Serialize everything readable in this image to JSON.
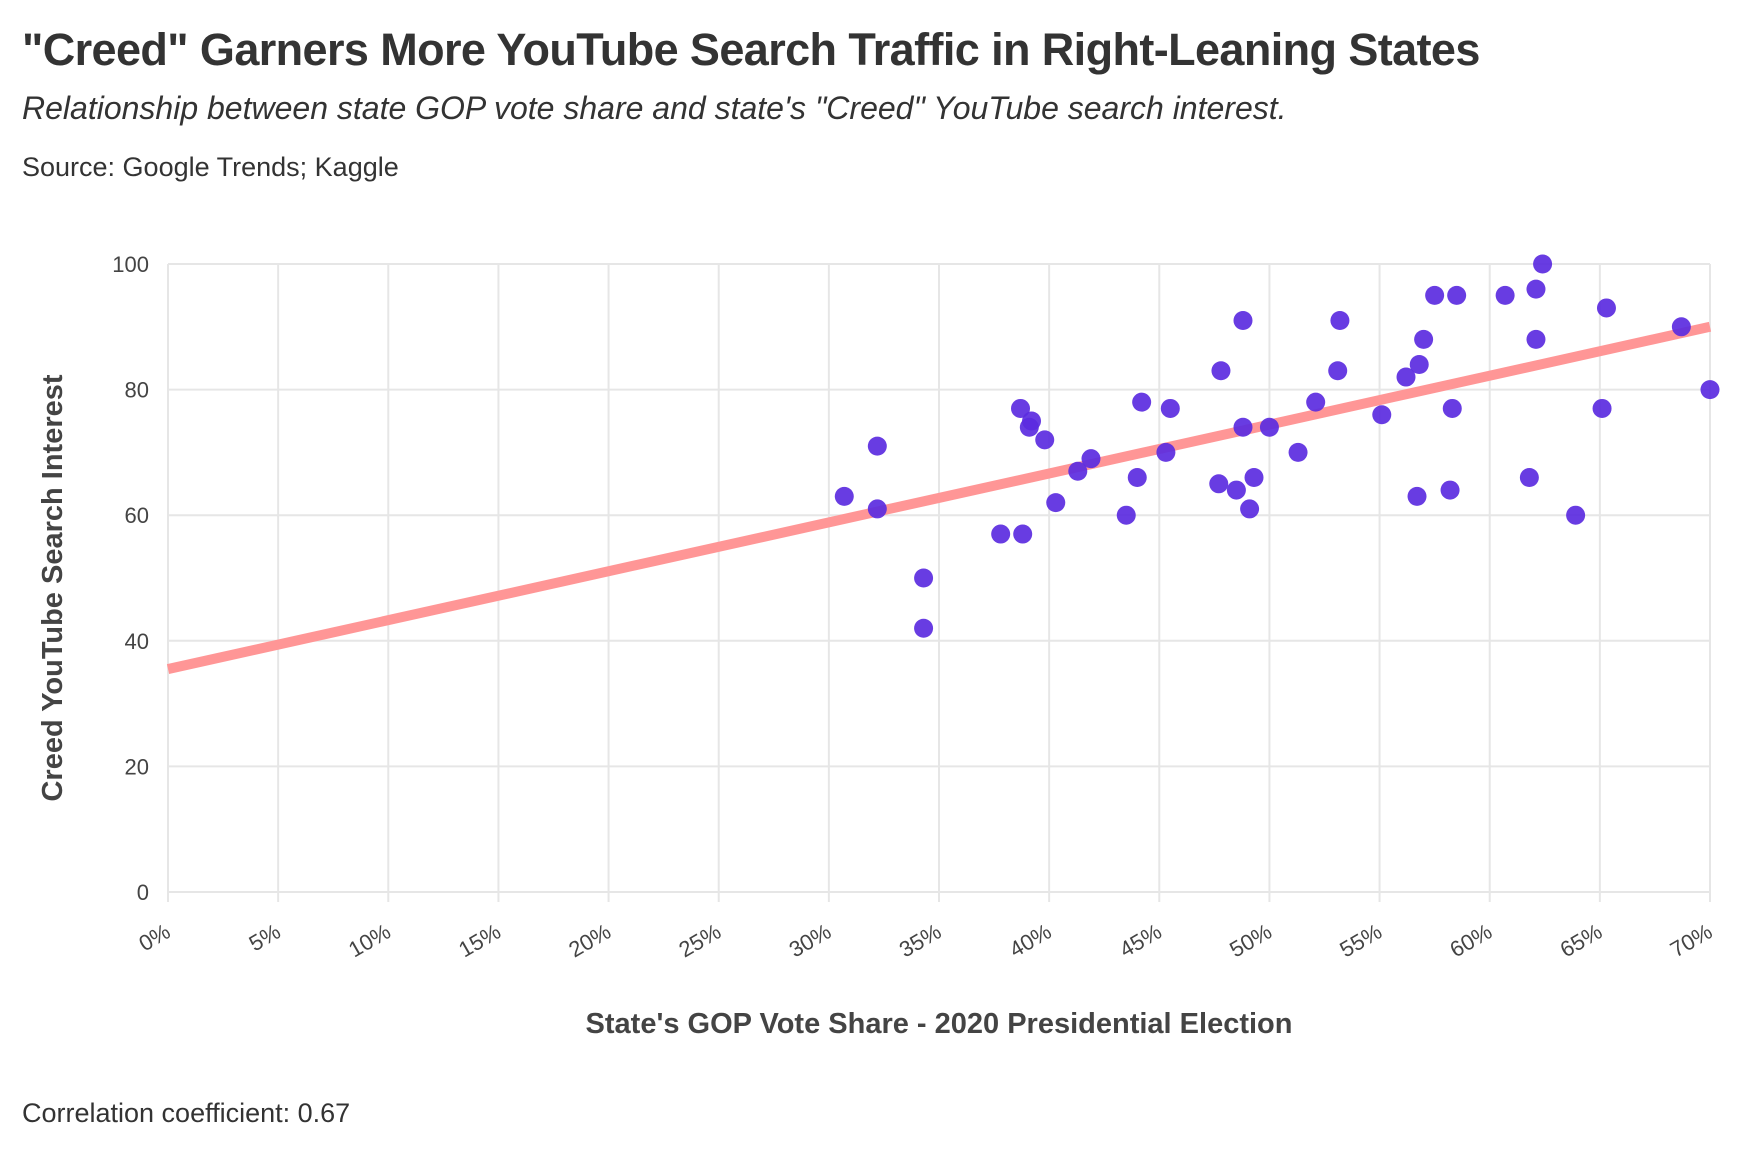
{
  "header": {
    "title": "\"Creed\" Garners More YouTube Search Traffic in Right-Leaning States",
    "subtitle": "Relationship between state GOP vote share and state's \"Creed\" YouTube search interest.",
    "source": "Source: Google Trends; Kaggle"
  },
  "footer": {
    "correlation": "Correlation coefficient: 0.67"
  },
  "colors": {
    "points": "#5b2be0",
    "trendline": "#ff9696",
    "grid": "#e6e6e6",
    "text": "#333333"
  },
  "chart_data": {
    "type": "scatter",
    "title": "\"Creed\" Garners More YouTube Search Traffic in Right-Leaning States",
    "xlabel": "State's GOP Vote Share - 2020 Presidential Election",
    "ylabel": "Creed YouTube Search Interest",
    "xlim": [
      0,
      70
    ],
    "ylim": [
      0,
      100
    ],
    "x_unit": "%",
    "x_ticks": [
      "0%",
      "5%",
      "10%",
      "15%",
      "20%",
      "25%",
      "30%",
      "35%",
      "40%",
      "45%",
      "50%",
      "55%",
      "60%",
      "65%",
      "70%"
    ],
    "y_ticks": [
      "0",
      "20",
      "40",
      "60",
      "80",
      "100"
    ],
    "grid": true,
    "trendline": {
      "x": [
        0,
        70
      ],
      "y": [
        35.5,
        90
      ]
    },
    "series": [
      {
        "points": [
          [
            30.7,
            63
          ],
          [
            32.2,
            71
          ],
          [
            32.2,
            61
          ],
          [
            34.3,
            50
          ],
          [
            34.3,
            42
          ],
          [
            37.8,
            57
          ],
          [
            38.7,
            77
          ],
          [
            38.8,
            57
          ],
          [
            39.1,
            74
          ],
          [
            39.2,
            75
          ],
          [
            39.8,
            72
          ],
          [
            40.3,
            62
          ],
          [
            41.3,
            67
          ],
          [
            41.9,
            69
          ],
          [
            43.5,
            60
          ],
          [
            44.0,
            66
          ],
          [
            44.2,
            78
          ],
          [
            45.3,
            70
          ],
          [
            45.5,
            77
          ],
          [
            47.7,
            65
          ],
          [
            47.8,
            83
          ],
          [
            48.5,
            64
          ],
          [
            48.8,
            91
          ],
          [
            48.8,
            74
          ],
          [
            49.1,
            61
          ],
          [
            49.3,
            66
          ],
          [
            50.0,
            74
          ],
          [
            51.3,
            70
          ],
          [
            52.1,
            78
          ],
          [
            53.1,
            83
          ],
          [
            53.2,
            91
          ],
          [
            55.1,
            76
          ],
          [
            56.2,
            82
          ],
          [
            56.7,
            63
          ],
          [
            56.8,
            84
          ],
          [
            57.0,
            88
          ],
          [
            57.5,
            95
          ],
          [
            58.2,
            64
          ],
          [
            58.3,
            77
          ],
          [
            58.5,
            95
          ],
          [
            60.7,
            95
          ],
          [
            61.8,
            66
          ],
          [
            62.1,
            96
          ],
          [
            62.1,
            88
          ],
          [
            62.4,
            100
          ],
          [
            63.9,
            60
          ],
          [
            65.1,
            77
          ],
          [
            65.3,
            93
          ],
          [
            68.7,
            90
          ],
          [
            70.0,
            80
          ]
        ]
      }
    ]
  }
}
